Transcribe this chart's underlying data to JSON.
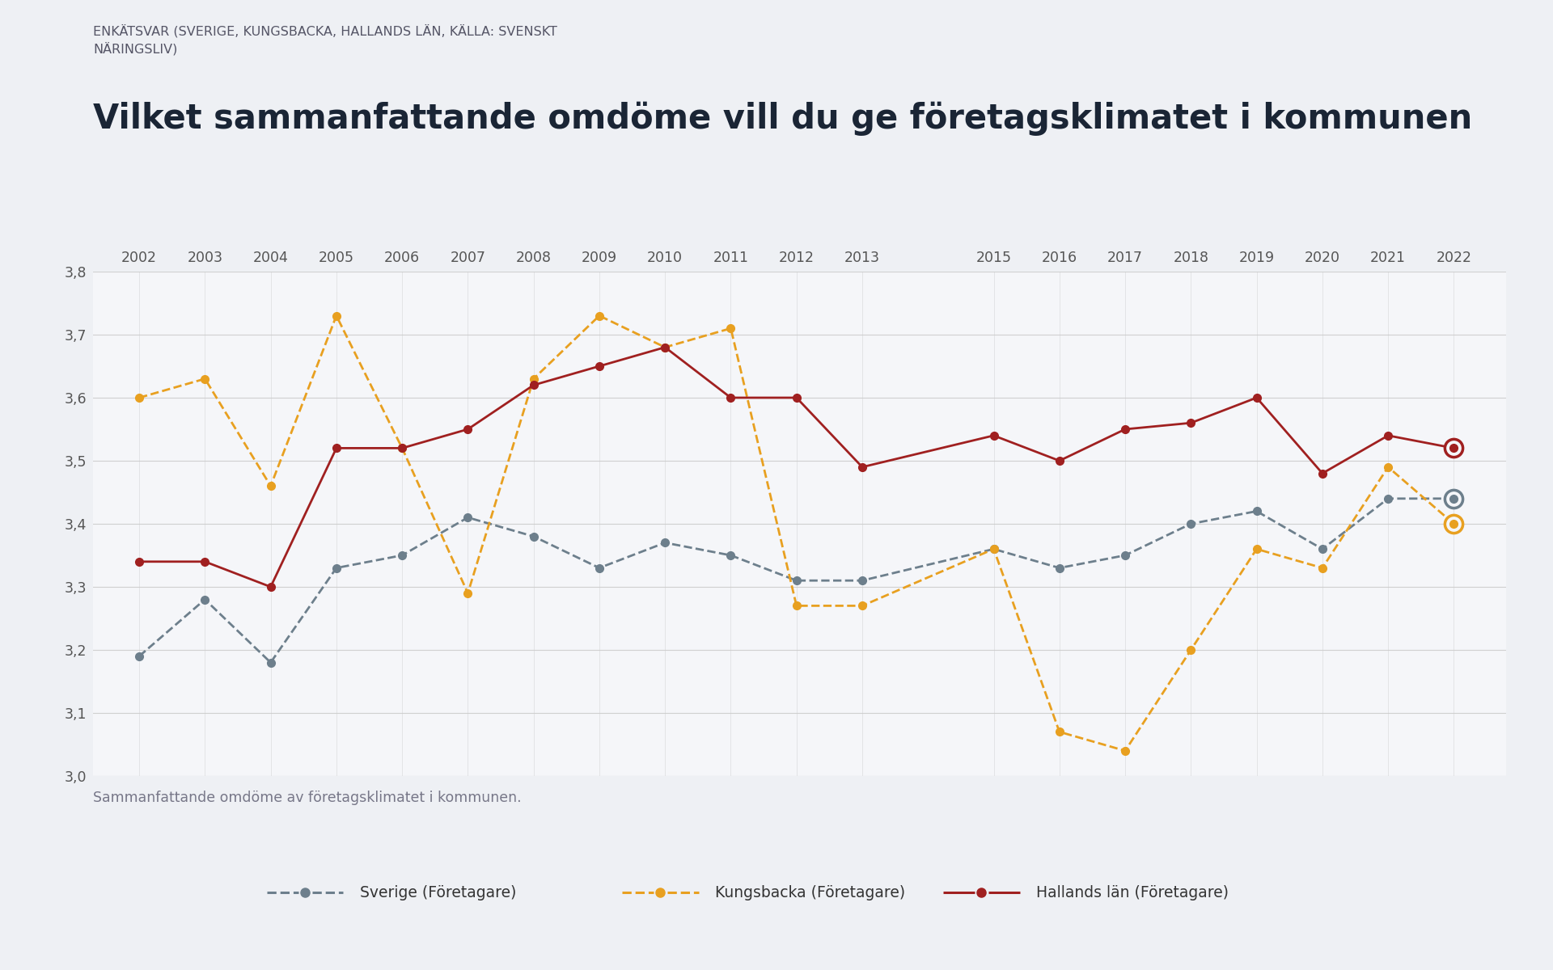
{
  "suptitle": "ENKÄTSVAR (SVERIGE, KUNGSBACKA, HALLANDS LÄN, KÄLLA: SVENSKT\nNÄRINGSLIV)",
  "title": "Vilket sammanfattande omdöme vill du ge företagsklimatet i kommunen",
  "subtitle": "Sammanfattande omdöme av företagsklimatet i kommunen.",
  "years": [
    2002,
    2003,
    2004,
    2005,
    2006,
    2007,
    2008,
    2009,
    2010,
    2011,
    2012,
    2013,
    2015,
    2016,
    2017,
    2018,
    2019,
    2020,
    2021,
    2022
  ],
  "sverige": [
    3.19,
    3.28,
    3.18,
    3.33,
    3.35,
    3.41,
    3.38,
    3.33,
    3.37,
    3.35,
    3.31,
    3.31,
    3.36,
    3.33,
    3.35,
    3.4,
    3.42,
    3.36,
    3.44,
    3.44
  ],
  "kungsbacka": [
    3.6,
    3.63,
    3.46,
    3.73,
    3.52,
    3.29,
    3.63,
    3.73,
    3.68,
    3.71,
    3.27,
    3.27,
    3.36,
    3.07,
    3.04,
    3.2,
    3.36,
    3.33,
    3.49,
    3.4
  ],
  "hallands_lan": [
    3.34,
    3.34,
    3.3,
    3.52,
    3.52,
    3.55,
    3.62,
    3.65,
    3.68,
    3.6,
    3.6,
    3.49,
    3.54,
    3.5,
    3.55,
    3.56,
    3.6,
    3.48,
    3.54,
    3.52
  ],
  "sverige_color": "#6d7f8c",
  "kungsbacka_color": "#e8a020",
  "hallands_lan_color": "#a02020",
  "ylim_min": 3.0,
  "ylim_max": 3.8,
  "yticks": [
    3.0,
    3.1,
    3.2,
    3.3,
    3.4,
    3.5,
    3.6,
    3.7,
    3.8
  ],
  "bg_color": "#eef0f4",
  "plot_bg_color": "#f5f6f9",
  "legend_sverige": "Sverige (Företagare)",
  "legend_kungsbacka": "Kungsbacka (Företagare)",
  "legend_hallands": "Hallands län (Företagare)"
}
